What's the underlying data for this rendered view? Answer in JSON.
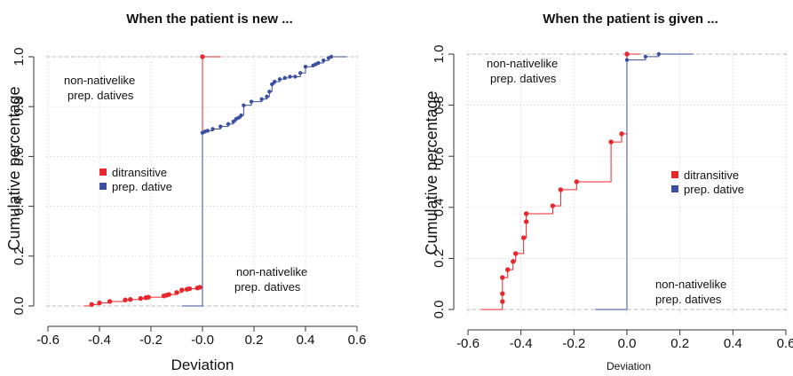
{
  "colors": {
    "ditransitive": "#e8262b",
    "prep_dative": "#3a4fa0",
    "grid": "#cccccc",
    "ref_line": "#bbbbbb",
    "axis": "#333333"
  },
  "chart_data": [
    {
      "type": "line",
      "step": true,
      "title": "When the patient is new ...",
      "xlabel": "Deviation",
      "ylabel": "Cumulative percentage",
      "xlim": [
        -0.6,
        0.6
      ],
      "ylim": [
        0,
        1
      ],
      "xticks": [
        "-0.6",
        "-0.4",
        "-0.2",
        "-0.0",
        "0.2",
        "0.4",
        "0.6"
      ],
      "yticks": [
        "0.0",
        "0.2",
        "0.4",
        "0.6",
        "0.8",
        "1.0"
      ],
      "grid": true,
      "legend": {
        "position": "middle-left",
        "entries": [
          "ditransitive",
          "prep. dative"
        ]
      },
      "annotations": [
        {
          "lines": [
            "non-nativelike",
            "prep. datives"
          ],
          "at": [
            -0.58,
            0.91
          ]
        },
        {
          "lines": [
            "non-nativelike",
            "prep. datives"
          ],
          "at": [
            0.17,
            0.1
          ]
        }
      ],
      "series": [
        {
          "name": "ditransitive",
          "color_key": "ditransitive",
          "x": [
            -0.43,
            -0.4,
            -0.36,
            -0.3,
            -0.28,
            -0.24,
            -0.22,
            -0.21,
            -0.15,
            -0.14,
            -0.13,
            -0.1,
            -0.08,
            -0.06,
            -0.05,
            -0.02,
            -0.01,
            0.0
          ],
          "y": [
            0.006,
            0.012,
            0.018,
            0.024,
            0.026,
            0.03,
            0.033,
            0.035,
            0.04,
            0.043,
            0.046,
            0.054,
            0.064,
            0.067,
            0.069,
            0.072,
            0.075,
            1.0
          ],
          "start_x": -0.46,
          "end_x": 0.07
        },
        {
          "name": "prep. dative",
          "color_key": "prep_dative",
          "x": [
            0.0,
            0.01,
            0.02,
            0.04,
            0.07,
            0.1,
            0.12,
            0.13,
            0.14,
            0.15,
            0.16,
            0.19,
            0.23,
            0.25,
            0.26,
            0.27,
            0.28,
            0.3,
            0.32,
            0.34,
            0.36,
            0.38,
            0.4,
            0.43,
            0.44,
            0.45,
            0.47,
            0.49,
            0.5
          ],
          "y": [
            0.695,
            0.7,
            0.703,
            0.71,
            0.72,
            0.73,
            0.74,
            0.75,
            0.755,
            0.765,
            0.805,
            0.82,
            0.83,
            0.84,
            0.86,
            0.89,
            0.9,
            0.91,
            0.915,
            0.92,
            0.92,
            0.935,
            0.96,
            0.965,
            0.97,
            0.975,
            0.985,
            0.995,
            1.0
          ],
          "start_x": -0.08,
          "end_x": 0.56
        }
      ]
    },
    {
      "type": "line",
      "step": true,
      "title": "When the patient is given ...",
      "xlabel": "Deviation",
      "ylabel": "Cumulative percentage",
      "xlim": [
        -0.6,
        0.6
      ],
      "ylim": [
        0,
        1
      ],
      "xticks": [
        "-0.6",
        "-0.4",
        "-0.2",
        "0.0",
        "0.2",
        "0.4",
        "0.6"
      ],
      "yticks": [
        "0.0",
        "0.2",
        "0.4",
        "0.6",
        "0.8",
        "1.0"
      ],
      "grid": true,
      "legend": {
        "position": "middle-right",
        "entries": [
          "ditransitive",
          "prep. dative"
        ]
      },
      "annotations": [
        {
          "lines": [
            "non-nativelike",
            "prep. datives"
          ],
          "at": [
            -0.58,
            0.97
          ]
        },
        {
          "lines": [
            "non-nativelike",
            "prep. datives"
          ],
          "at": [
            0.1,
            0.06
          ]
        }
      ],
      "series": [
        {
          "name": "ditransitive",
          "color_key": "ditransitive",
          "x": [
            -0.47,
            -0.47,
            -0.47,
            -0.45,
            -0.43,
            -0.42,
            -0.39,
            -0.38,
            -0.38,
            -0.28,
            -0.25,
            -0.19,
            -0.06,
            -0.02,
            0.0
          ],
          "y": [
            0.031,
            0.062,
            0.125,
            0.156,
            0.188,
            0.219,
            0.281,
            0.344,
            0.375,
            0.406,
            0.469,
            0.5,
            0.656,
            0.688,
            1.0
          ],
          "start_x": -0.55,
          "end_x": 0.05
        },
        {
          "name": "prep. dative",
          "color_key": "prep_dative",
          "x": [
            0.0,
            0.07,
            0.12
          ],
          "y": [
            0.977,
            0.99,
            1.0
          ],
          "start_x": -0.12,
          "end_x": 0.25
        }
      ]
    }
  ]
}
